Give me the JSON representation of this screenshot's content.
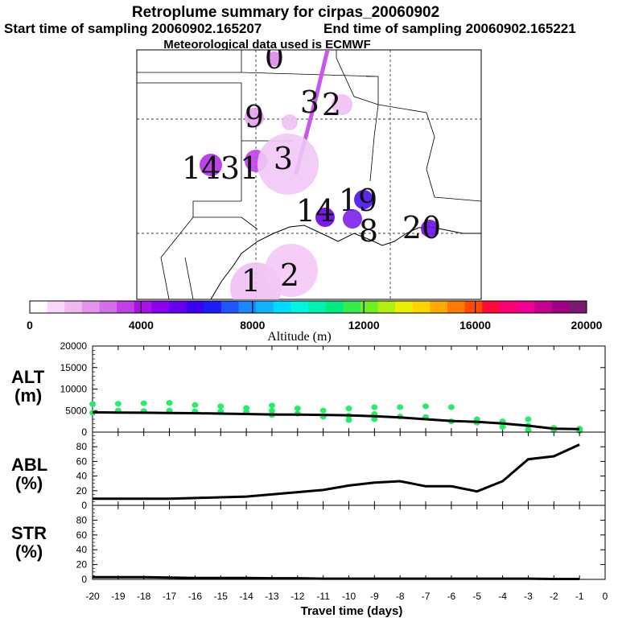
{
  "header": {
    "title": "Retroplume summary for cirpas_20060902",
    "start_label": "Start time of sampling 20060902.165207",
    "end_label": "End time of sampling 20060902.165221",
    "met_label": "Meteorological data used is ECMWF"
  },
  "colorbar": {
    "ticks": [
      "0",
      "4000",
      "8000",
      "12000",
      "16000",
      "20000"
    ],
    "label": "Altitude (m)",
    "colors": [
      "#ffffff",
      "#f7d8f8",
      "#efb8f3",
      "#e395ee",
      "#d36fe9",
      "#c040e8",
      "#aa10e8",
      "#8a00ee",
      "#6400f0",
      "#3a00f0",
      "#1c1cf8",
      "#1e55ff",
      "#1a86ff",
      "#10b4ff",
      "#00dcff",
      "#00f4e0",
      "#00f0b0",
      "#00ec80",
      "#30ec4c",
      "#70ee20",
      "#b0f010",
      "#e8f000",
      "#ffd400",
      "#ffaa00",
      "#ff7c00",
      "#ff4a00",
      "#ff0a3a",
      "#ff0070",
      "#f00090",
      "#c80090",
      "#a00086",
      "#7a1a70"
    ]
  },
  "map": {
    "clusters": [
      {
        "label": "0",
        "color": "#dd88ee"
      },
      {
        "label": "2",
        "color": "#f0c0f4"
      },
      {
        "label": "9",
        "color": "#e8a0ef"
      },
      {
        "label": "3",
        "color": "#f0c0f4"
      },
      {
        "label": "14",
        "color": "#b030e8"
      },
      {
        "label": "31",
        "color": "#c040e8"
      },
      {
        "label": "3",
        "color": "#f0c8f6"
      },
      {
        "label": "19",
        "color": "#4a10f0"
      },
      {
        "label": "14",
        "color": "#6a00ee"
      },
      {
        "label": "8",
        "color": "#7a20ec"
      },
      {
        "label": "20",
        "color": "#6a10ee"
      },
      {
        "label": "1",
        "color": "#f0c0f4"
      },
      {
        "label": "2",
        "color": "#f4c8f6"
      }
    ]
  },
  "panels": {
    "alt": {
      "label_top": "ALT",
      "label_bottom": "(m)",
      "yticks": [
        "20000",
        "15000",
        "10000",
        "5000",
        "0"
      ]
    },
    "abl": {
      "label_top": "ABL",
      "label_bottom": "(%)",
      "yticks": [
        "80",
        "60",
        "40",
        "20",
        "0"
      ]
    },
    "str": {
      "label_top": "STR",
      "label_bottom": "(%)",
      "yticks": [
        "80",
        "60",
        "40",
        "20",
        "0"
      ]
    }
  },
  "xaxis": {
    "ticks": [
      "-20",
      "-19",
      "-18",
      "-17",
      "-16",
      "-15",
      "-14",
      "-13",
      "-12",
      "-11",
      "-10",
      "-9",
      "-8",
      "-7",
      "-6",
      "-5",
      "-4",
      "-3",
      "-2",
      "-1",
      "0"
    ],
    "label": "Travel time (days)"
  },
  "chart_data": [
    {
      "type": "line",
      "title": "ALT (m)",
      "xlabel": "Travel time (days)",
      "ylabel": "Altitude (m)",
      "x": [
        -20,
        -19,
        -18,
        -17,
        -16,
        -15,
        -14,
        -13,
        -12,
        -11,
        -10,
        -9,
        -8,
        -7,
        -6,
        -5,
        -4,
        -3,
        -2,
        -1
      ],
      "values": [
        4600,
        4550,
        4500,
        4450,
        4400,
        4300,
        4200,
        4100,
        4050,
        4000,
        3900,
        3700,
        3400,
        3000,
        2600,
        2400,
        2000,
        1500,
        800,
        700
      ],
      "ylim": [
        0,
        20000
      ],
      "xlim": [
        -20,
        0
      ],
      "scatter_color": "#22ee66",
      "scatter": [
        [
          -20,
          6500
        ],
        [
          -20,
          4500
        ],
        [
          -19,
          6600
        ],
        [
          -19,
          5000
        ],
        [
          -18,
          6700
        ],
        [
          -18,
          4900
        ],
        [
          -17,
          6800
        ],
        [
          -17,
          5000
        ],
        [
          -16,
          6300
        ],
        [
          -16,
          4800
        ],
        [
          -15,
          6000
        ],
        [
          -15,
          4800
        ],
        [
          -14,
          5600
        ],
        [
          -14,
          4700
        ],
        [
          -13,
          6200
        ],
        [
          -13,
          5000
        ],
        [
          -13,
          4000
        ],
        [
          -12,
          5500
        ],
        [
          -12,
          4300
        ],
        [
          -11,
          5000
        ],
        [
          -11,
          3600
        ],
        [
          -10,
          5500
        ],
        [
          -10,
          3800
        ],
        [
          -10,
          2800
        ],
        [
          -9,
          5800
        ],
        [
          -9,
          4200
        ],
        [
          -9,
          3000
        ],
        [
          -8,
          5800
        ],
        [
          -8,
          3600
        ],
        [
          -7,
          6000
        ],
        [
          -7,
          3500
        ],
        [
          -6,
          5800
        ],
        [
          -6,
          2500
        ],
        [
          -5,
          3000
        ],
        [
          -5,
          2200
        ],
        [
          -4,
          2500
        ],
        [
          -4,
          1200
        ],
        [
          -3,
          3000
        ],
        [
          -3,
          1500
        ],
        [
          -3,
          500
        ],
        [
          -2,
          1000
        ],
        [
          -2,
          500
        ],
        [
          -1,
          800
        ],
        [
          -1,
          300
        ]
      ]
    },
    {
      "type": "line",
      "title": "ABL (%)",
      "xlabel": "Travel time (days)",
      "ylabel": "ABL (%)",
      "x": [
        -20,
        -19,
        -18,
        -17,
        -16,
        -15,
        -14,
        -13,
        -12,
        -11,
        -10,
        -9,
        -8,
        -7,
        -6,
        -5,
        -4,
        -3,
        -2,
        -1
      ],
      "values": [
        9,
        9,
        9,
        9,
        10,
        11,
        12,
        15,
        18,
        21,
        27,
        31,
        33,
        26,
        26,
        19,
        33,
        63,
        67,
        83
      ],
      "ylim": [
        0,
        100
      ],
      "xlim": [
        -20,
        0
      ]
    },
    {
      "type": "line",
      "title": "STR (%)",
      "xlabel": "Travel time (days)",
      "ylabel": "STR (%)",
      "x": [
        -20,
        -19,
        -18,
        -17,
        -16,
        -15,
        -14,
        -13,
        -12,
        -11,
        -10,
        -9,
        -8,
        -7,
        -6,
        -5,
        -4,
        -3,
        -2,
        -1
      ],
      "values": [
        3,
        3,
        3,
        2.5,
        2,
        2,
        2,
        1.5,
        1.5,
        1,
        1,
        1,
        1,
        1,
        1,
        1,
        1,
        1,
        0.5,
        0.5
      ],
      "ylim": [
        0,
        100
      ],
      "xlim": [
        -20,
        0
      ]
    }
  ]
}
